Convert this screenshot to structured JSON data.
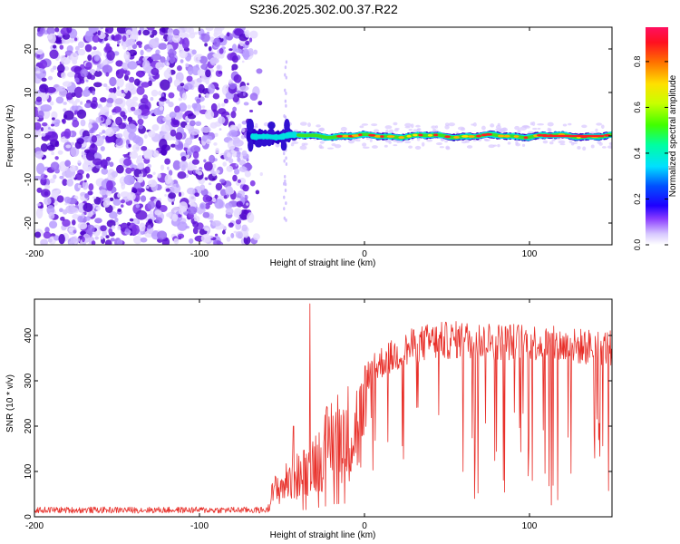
{
  "figure_title": "S236.2025.302.00.37.R22",
  "colors": {
    "snr_line": "#e8302a",
    "ridge_outer": "#2a00c8",
    "ridge_mid": "#00e0e0",
    "ridge_core": "#40e020",
    "ridge_peak": "#ff2020",
    "noise": "#7a30e8"
  },
  "chart_data": [
    {
      "type": "heatmap",
      "title": "",
      "xlabel": "Height of straight line (km)",
      "ylabel": "Frequency (Hz)",
      "xlim": [
        -200,
        150
      ],
      "ylim": [
        -25,
        25
      ],
      "xticks": [
        -200,
        -100,
        0,
        100
      ],
      "yticks": [
        -20,
        -10,
        0,
        10,
        20
      ],
      "colorbar": {
        "label": "Normalized spectral amplitude",
        "range": [
          0,
          0.95
        ],
        "ticks": [
          0.0,
          0.2,
          0.4,
          0.6,
          0.8
        ]
      },
      "regions": [
        {
          "name": "broadband noise",
          "x_range": [
            -200,
            -70
          ],
          "y_range": [
            -25,
            25
          ],
          "amplitude": 0.1
        },
        {
          "name": "signal ridge",
          "x_range": [
            -70,
            150
          ],
          "frequency_hz": 0,
          "amplitude": 0.9
        }
      ]
    },
    {
      "type": "line",
      "title": "",
      "xlabel": "Height of straight line (km)",
      "ylabel": "SNR (10 * v/v)",
      "xlim": [
        -200,
        150
      ],
      "ylim": [
        0,
        480
      ],
      "xticks": [
        -200,
        -100,
        0,
        100
      ],
      "yticks": [
        0,
        100,
        200,
        300,
        400
      ],
      "series": [
        {
          "name": "SNR",
          "envelope_x": [
            -200,
            -60,
            -55,
            -45,
            -35,
            -30,
            -25,
            -20,
            -10,
            0,
            10,
            20,
            30,
            40,
            60,
            80,
            100,
            120,
            150
          ],
          "envelope_y": [
            20,
            20,
            90,
            130,
            160,
            200,
            220,
            280,
            300,
            330,
            370,
            390,
            410,
            420,
            425,
            420,
            420,
            410,
            405
          ],
          "peaks": [
            {
              "x": -33,
              "y": 470
            },
            {
              "x": -43,
              "y": 200
            }
          ]
        }
      ]
    }
  ]
}
